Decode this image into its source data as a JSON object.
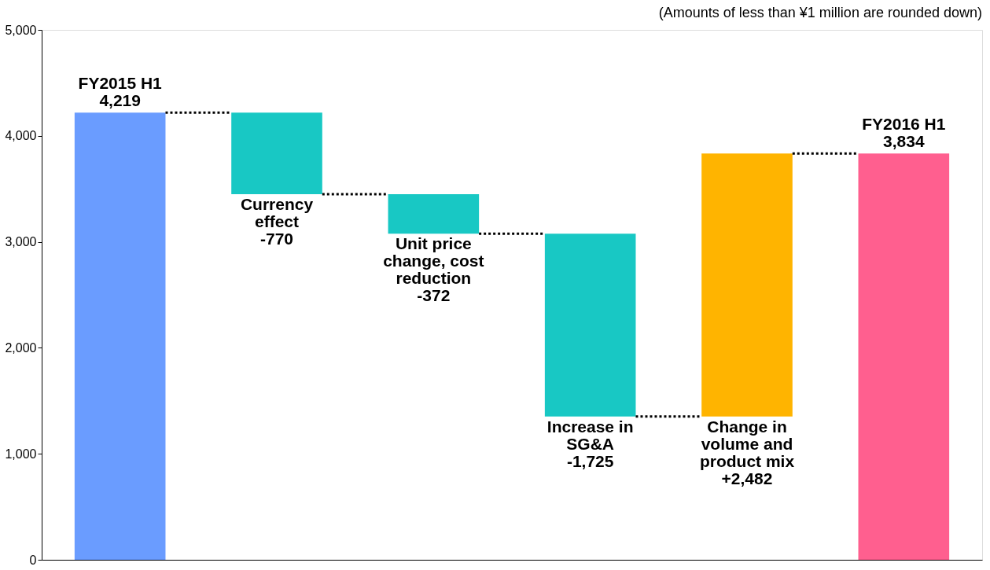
{
  "chart_data": {
    "type": "bar",
    "annotations": [
      "(Amounts of less than ¥1 million are rounded down)"
    ],
    "categories": [
      "FY2015 H1",
      "Currency effect",
      "Unit price change, cost reduction",
      "Increase in SG&A",
      "Change in volume and product mix",
      "FY2016 H1"
    ],
    "values": [
      4219,
      -770,
      -372,
      -1725,
      2482,
      3834
    ],
    "base": [
      0,
      4219,
      3449,
      3077,
      1352,
      0
    ],
    "colors": [
      "#6a9cff",
      "#18c8c4",
      "#18c8c4",
      "#18c8c4",
      "#ffb400",
      "#ff5f8f"
    ],
    "value_labels": [
      "4,219",
      "-770",
      "-372",
      "-1,725",
      "+2,482",
      "3,834"
    ],
    "ylim": [
      0,
      5000
    ],
    "yticks": [
      0,
      {
        "value": 1000,
        "label": "1,000"
      },
      {
        "value": 2000,
        "label": "2,000"
      },
      {
        "value": 3000,
        "label": "3,000"
      },
      {
        "value": 4000,
        "label": "4,000"
      },
      {
        "value": 5000,
        "label": "5,000"
      }
    ],
    "tick_labels": "y",
    "grid": false,
    "legend": false
  }
}
